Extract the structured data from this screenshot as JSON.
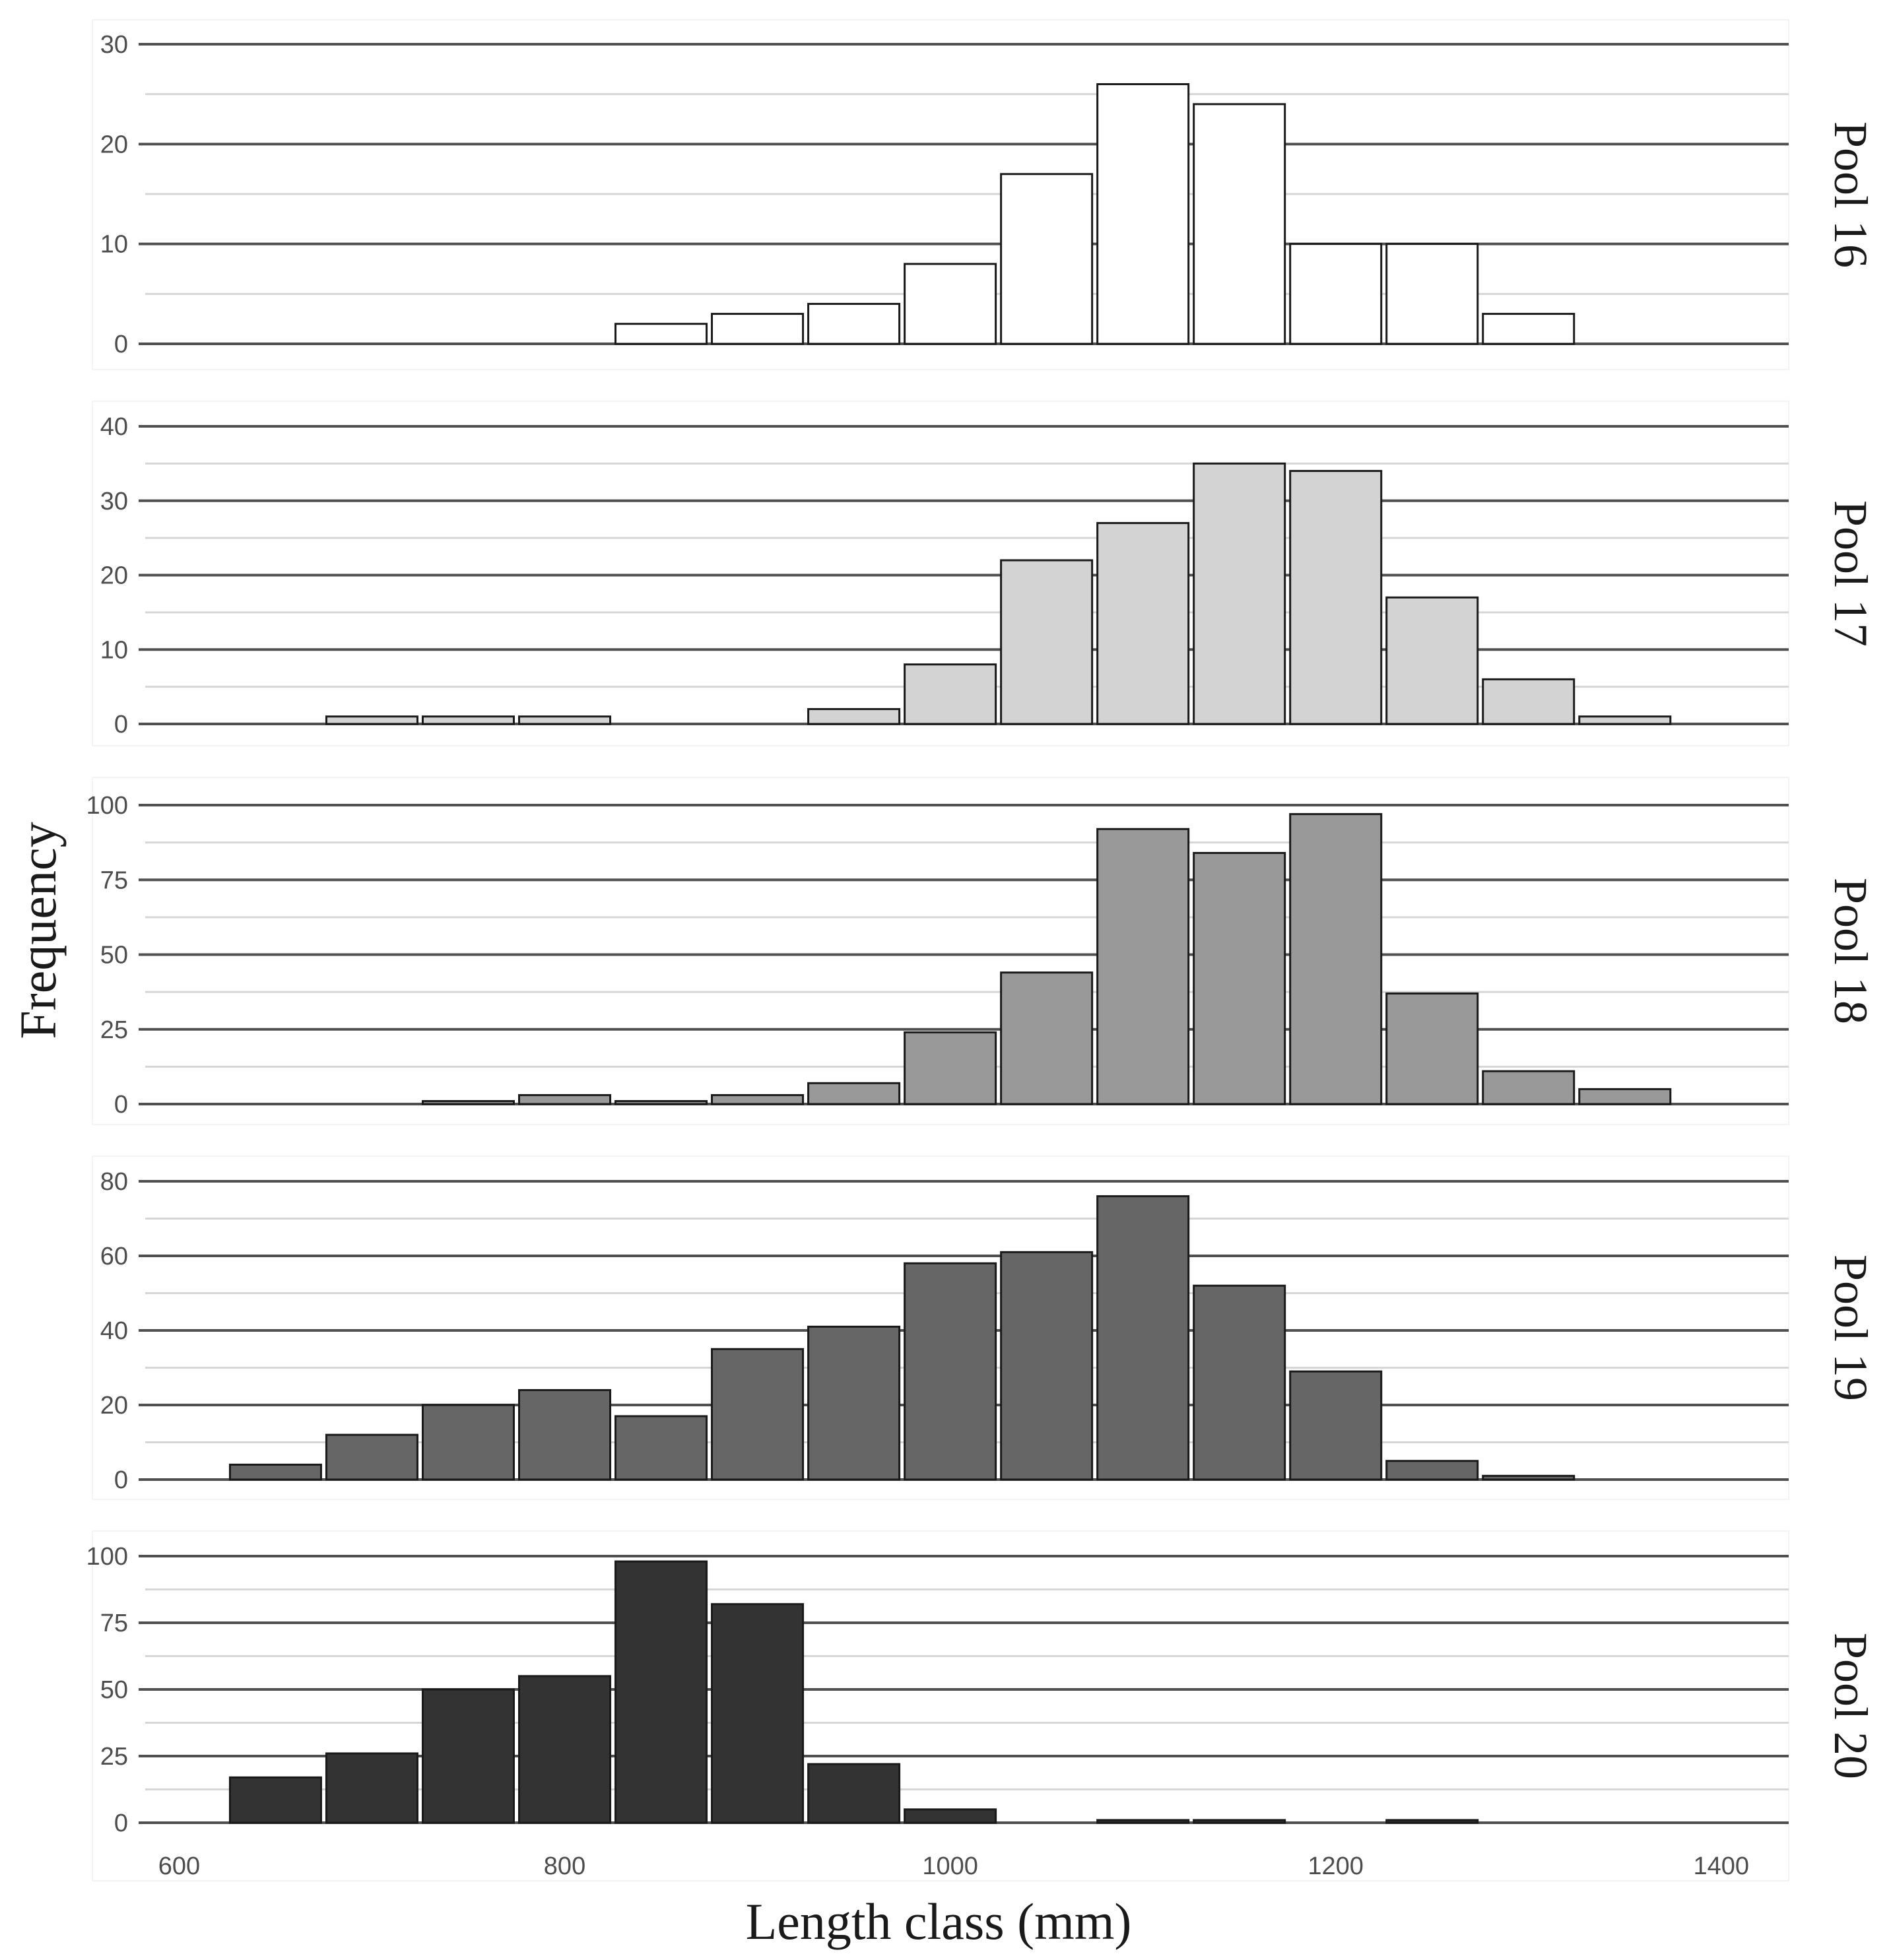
{
  "chart_data": {
    "type": "bar",
    "subtype": "faceted-histogram",
    "xlabel": "Length class (mm)",
    "ylabel": "Frequency",
    "xlim": [
      555,
      1435
    ],
    "x_ticks": [
      600,
      800,
      1000,
      1200,
      1400
    ],
    "bin_width": 50,
    "bin_centers": [
      650,
      700,
      750,
      800,
      850,
      900,
      950,
      1000,
      1050,
      1100,
      1150,
      1200,
      1250,
      1300,
      1350
    ],
    "panels": [
      {
        "label": "Pool 16",
        "fill": "#ffffff",
        "ylim": [
          0,
          30
        ],
        "y_ticks": [
          0,
          10,
          20,
          30
        ],
        "values": [
          0,
          0,
          0,
          0,
          2,
          3,
          4,
          8,
          17,
          26,
          24,
          10,
          10,
          3,
          0
        ]
      },
      {
        "label": "Pool 17",
        "fill": "#d3d3d3",
        "ylim": [
          0,
          40
        ],
        "y_ticks": [
          0,
          10,
          20,
          30,
          40
        ],
        "values": [
          0,
          1,
          1,
          1,
          0,
          0,
          2,
          8,
          22,
          27,
          35,
          34,
          17,
          6,
          1
        ]
      },
      {
        "label": "Pool 18",
        "fill": "#999999",
        "ylim": [
          0,
          100
        ],
        "y_ticks": [
          0,
          25,
          50,
          75,
          100
        ],
        "values": [
          0,
          0,
          1,
          3,
          1,
          3,
          7,
          24,
          44,
          92,
          84,
          97,
          37,
          11,
          5
        ]
      },
      {
        "label": "Pool 19",
        "fill": "#666666",
        "ylim": [
          0,
          80
        ],
        "y_ticks": [
          0,
          20,
          40,
          60,
          80
        ],
        "values": [
          4,
          12,
          20,
          24,
          17,
          35,
          41,
          58,
          61,
          76,
          52,
          29,
          5,
          1,
          0
        ]
      },
      {
        "label": "Pool 20",
        "fill": "#333333",
        "ylim": [
          0,
          100
        ],
        "y_ticks": [
          0,
          25,
          50,
          75,
          100
        ],
        "values": [
          17,
          26,
          50,
          55,
          98,
          82,
          22,
          5,
          0,
          1,
          1,
          0,
          1,
          0,
          0
        ]
      }
    ]
  }
}
